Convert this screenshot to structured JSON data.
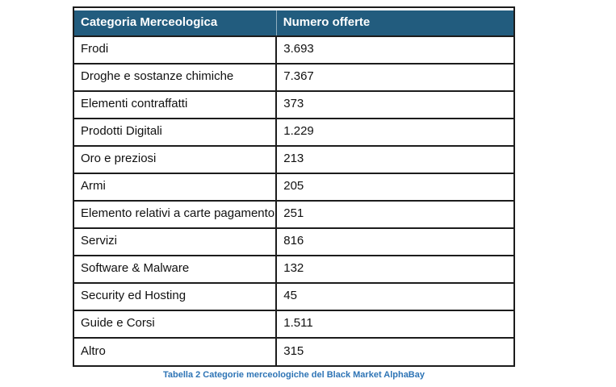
{
  "table": {
    "columns": [
      {
        "key": "categoria",
        "label": "Categoria Merceologica"
      },
      {
        "key": "numero",
        "label": "Numero offerte"
      }
    ],
    "rows": [
      {
        "categoria": "Frodi",
        "numero": "3.693"
      },
      {
        "categoria": "Droghe e sostanze chimiche",
        "numero": "7.367"
      },
      {
        "categoria": "Elementi contraffatti",
        "numero": "373"
      },
      {
        "categoria": "Prodotti Digitali",
        "numero": "1.229"
      },
      {
        "categoria": "Oro e preziosi",
        "numero": "213"
      },
      {
        "categoria": "Armi",
        "numero": "205"
      },
      {
        "categoria": "Elemento relativi a carte pagamento",
        "numero": "251"
      },
      {
        "categoria": "Servizi",
        "numero": "816"
      },
      {
        "categoria": "Software & Malware",
        "numero": "132"
      },
      {
        "categoria": "Security ed Hosting",
        "numero": "45"
      },
      {
        "categoria": "Guide e Corsi",
        "numero": "1.511"
      },
      {
        "categoria": "Altro",
        "numero": "315"
      }
    ]
  },
  "caption": "Tabella 2 Categorie merceologiche del Black Market AlphaBay",
  "colors": {
    "header_bg": "#225C7E",
    "header_text": "#ffffff",
    "border": "#1c1c1c",
    "cell_text": "#111111",
    "caption": "#2E74B5",
    "page_bg": "#ffffff"
  }
}
